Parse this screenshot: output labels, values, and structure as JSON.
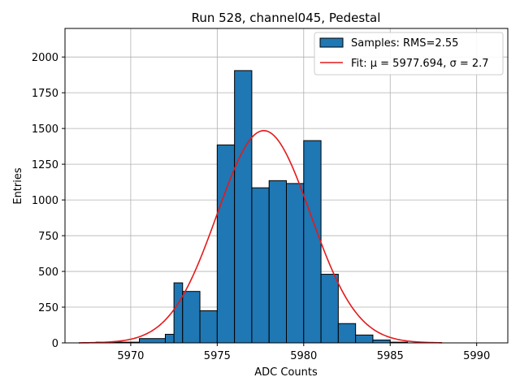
{
  "chart_data": {
    "type": "histogram",
    "title": "Run 528, channel045, Pedestal",
    "xlabel": "ADC Counts",
    "ylabel": "Entries",
    "xlim": [
      5966.2,
      5991.8
    ],
    "ylim": [
      0,
      2200
    ],
    "xticks": [
      5970,
      5975,
      5980,
      5985,
      5990
    ],
    "yticks": [
      0,
      250,
      500,
      750,
      1000,
      1250,
      1500,
      1750,
      2000
    ],
    "grid": true,
    "legend_position": "top-right",
    "bin_edges": [
      5967.0,
      5969.5,
      5972.0,
      5974.5,
      5977.0,
      5979.5,
      5982.0,
      5984.5,
      5987.0,
      5989.5
    ],
    "bars": [
      {
        "x0": 5968.0,
        "x1": 5970.5,
        "value": 5
      },
      {
        "x0": 5970.5,
        "x1": 5972.0,
        "value": 30
      },
      {
        "x0": 5972.0,
        "x1": 5972.5,
        "value": 60
      },
      {
        "x0": 5972.5,
        "x1": 5973.0,
        "value": 420
      },
      {
        "x0": 5973.0,
        "x1": 5974.0,
        "value": 360
      },
      {
        "x0": 5974.0,
        "x1": 5975.0,
        "value": 225
      },
      {
        "x0": 5975.0,
        "x1": 5976.0,
        "value": 1385
      },
      {
        "x0": 5976.0,
        "x1": 5977.0,
        "value": 1905
      },
      {
        "x0": 5977.0,
        "x1": 5978.0,
        "value": 1085
      },
      {
        "x0": 5978.0,
        "x1": 5979.0,
        "value": 1135
      },
      {
        "x0": 5979.0,
        "x1": 5980.0,
        "value": 1115
      },
      {
        "x0": 5980.0,
        "x1": 5981.0,
        "value": 1415
      },
      {
        "x0": 5981.0,
        "x1": 5982.0,
        "value": 480
      },
      {
        "x0": 5982.0,
        "x1": 5983.0,
        "value": 135
      },
      {
        "x0": 5983.0,
        "x1": 5984.0,
        "value": 55
      },
      {
        "x0": 5984.0,
        "x1": 5985.0,
        "value": 20
      },
      {
        "x0": 5985.0,
        "x1": 5986.0,
        "value": 5
      }
    ],
    "fit": {
      "type": "gaussian",
      "mu": 5977.694,
      "sigma": 2.7,
      "amplitude": 1485,
      "x_range": [
        5967.0,
        5988.0
      ]
    },
    "legend": [
      {
        "label": "Samples: RMS=2.55",
        "kind": "bar"
      },
      {
        "label": "Fit: μ = 5977.694, σ = 2.7",
        "kind": "line"
      }
    ],
    "colors": {
      "bar": "#1f77b4",
      "bar_edge": "#000000",
      "fit": "#e41a1c",
      "grid": "#b0b0b0"
    }
  }
}
